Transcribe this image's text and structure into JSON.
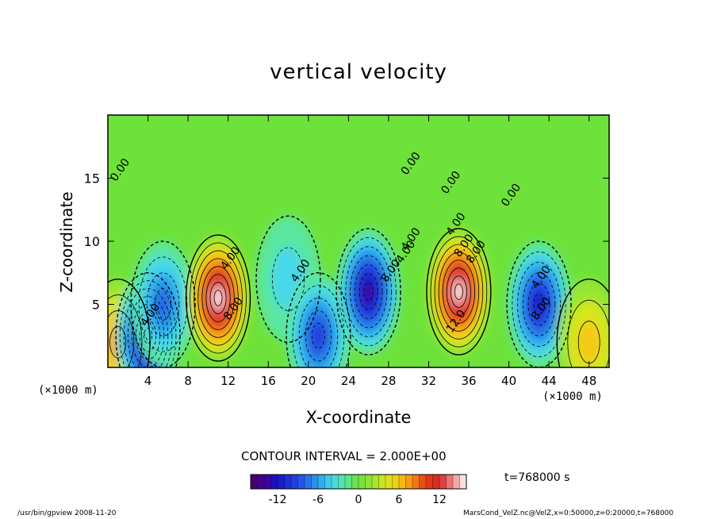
{
  "chart_data": {
    "type": "heatmap",
    "title": "vertical velocity",
    "xlabel": "X-coordinate",
    "ylabel": "Z-coordinate",
    "x_unit": "(×1000 m)",
    "xlim": [
      0,
      50
    ],
    "ylim": [
      0,
      20
    ],
    "x_ticks": [
      "4",
      "8",
      "12",
      "16",
      "20",
      "24",
      "28",
      "32",
      "36",
      "40",
      "44",
      "48"
    ],
    "y_ticks": [
      "5",
      "10",
      "15"
    ],
    "contour_interval": "CONTOUR INTERVAL = 2.000E+00",
    "colorbar": {
      "min": -16,
      "max": 16,
      "ticks": [
        "-12",
        "-6",
        "0",
        "6",
        "12"
      ]
    },
    "contour_labels": [
      "0.00",
      "0.00",
      "0.00",
      "0.00",
      "4.00",
      "4.00",
      "4.00",
      "4.00",
      "4.00",
      "4.00",
      "4.00",
      "8.00",
      "8.00",
      "8.00",
      "8.00",
      "8.00",
      "12.0"
    ],
    "features": [
      {
        "x": 1.0,
        "z": 2.0,
        "w": 8
      },
      {
        "x": 4.0,
        "z": 2.5,
        "w": -15
      },
      {
        "x": 5.5,
        "z": 5.0,
        "w": -8
      },
      {
        "x": 11.0,
        "z": 5.5,
        "w": 16
      },
      {
        "x": 18.0,
        "z": 7.0,
        "w": -4
      },
      {
        "x": 21.0,
        "z": 2.5,
        "w": -10
      },
      {
        "x": 26.0,
        "z": 6.0,
        "w": -14
      },
      {
        "x": 35.0,
        "z": 6.0,
        "w": 16
      },
      {
        "x": 43.0,
        "z": 5.0,
        "w": -12
      },
      {
        "x": 48.0,
        "z": 2.0,
        "w": 6
      }
    ]
  },
  "time_label": "t=768000 s",
  "footer_left": "/usr/bin/gpview  2008-11-20",
  "footer_right": "MarsCond_VelZ.nc@VelZ,x=0:50000,z=0:20000,t=768000"
}
